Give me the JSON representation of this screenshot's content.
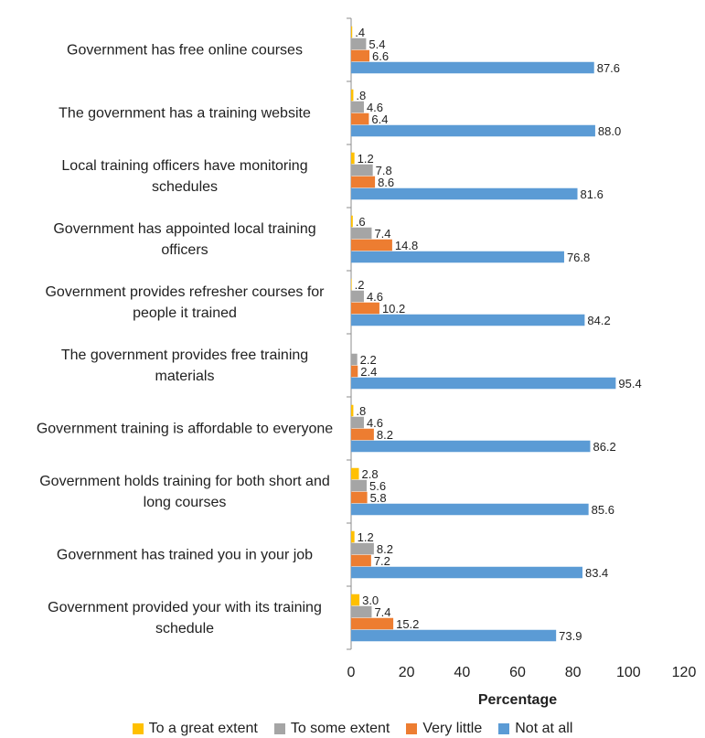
{
  "chart_data": {
    "type": "bar",
    "orientation": "horizontal",
    "categories": [
      "Government has free online courses",
      "The government has a training website",
      "Local training officers have monitoring schedules",
      "Government has appointed local training officers",
      "Government provides refresher courses for people it   trained",
      "The government provides free training materials",
      "Government training is affordable to everyone",
      "Government holds training for both short and long courses",
      "Government has trained you in your job",
      "Government provided your with its training schedule"
    ],
    "category_lines": [
      [
        "Government has free online courses"
      ],
      [
        "The government has a training website"
      ],
      [
        "Local training officers have monitoring",
        "schedules"
      ],
      [
        "Government has appointed local training",
        "officers"
      ],
      [
        "Government provides refresher courses for",
        "people it   trained"
      ],
      [
        "The government provides free training",
        "materials"
      ],
      [
        "Government training is affordable to everyone"
      ],
      [
        "Government holds training for both short and",
        "long courses"
      ],
      [
        "Government has trained you in your job"
      ],
      [
        "Government provided your with its training",
        "schedule"
      ]
    ],
    "series": [
      {
        "name": "To a great extent",
        "color": "#FFC000",
        "values": [
          0.4,
          0.8,
          1.2,
          0.6,
          0.2,
          null,
          0.8,
          2.8,
          1.2,
          3.0
        ],
        "labels": [
          ".4",
          ".8",
          "1.2",
          ".6",
          ".2",
          "",
          ".8",
          "2.8",
          "1.2",
          "3.0"
        ]
      },
      {
        "name": "To some extent",
        "color": "#A5A5A5",
        "values": [
          5.4,
          4.6,
          7.8,
          7.4,
          4.6,
          2.2,
          4.6,
          5.6,
          8.2,
          7.4
        ],
        "labels": [
          "5.4",
          "4.6",
          "7.8",
          "7.4",
          "4.6",
          "2.2",
          "4.6",
          "5.6",
          "8.2",
          "7.4"
        ]
      },
      {
        "name": "Very little",
        "color": "#ED7D31",
        "values": [
          6.6,
          6.4,
          8.6,
          14.8,
          10.2,
          2.4,
          8.2,
          5.8,
          7.2,
          15.2
        ],
        "labels": [
          "6.6",
          "6.4",
          "8.6",
          "14.8",
          "10.2",
          "2.4",
          "8.2",
          "5.8",
          "7.2",
          "15.2"
        ]
      },
      {
        "name": "Not at all",
        "color": "#5B9BD5",
        "values": [
          87.6,
          88.0,
          81.6,
          76.8,
          84.2,
          95.4,
          86.2,
          85.6,
          83.4,
          73.9
        ],
        "labels": [
          "87.6",
          "88.0",
          "81.6",
          "76.8",
          "84.2",
          "95.4",
          "86.2",
          "85.6",
          "83.4",
          "73.9"
        ]
      }
    ],
    "xlabel": "Percentage",
    "xlim": [
      0,
      120
    ],
    "xticks": [
      0,
      20,
      40,
      60,
      80,
      100,
      120
    ],
    "grid": false,
    "legend_position": "bottom"
  }
}
